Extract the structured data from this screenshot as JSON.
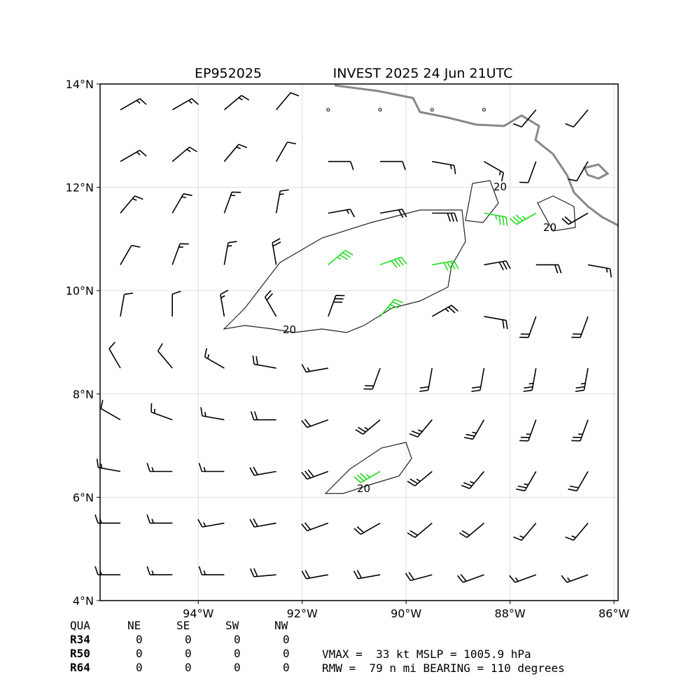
{
  "header": {
    "storm_id": "EP952025",
    "title": "INVEST 2025 24 Jun 21UTC"
  },
  "map": {
    "lonlim": [
      -95.89,
      -85.92
    ],
    "latlim": [
      4,
      14
    ],
    "lonticks": [
      {
        "value": -94,
        "label": "94°W"
      },
      {
        "value": -92,
        "label": "92°W"
      },
      {
        "value": -90,
        "label": "90°W"
      },
      {
        "value": -88,
        "label": "88°W"
      },
      {
        "value": -86,
        "label": "86°W"
      }
    ],
    "latticks": [
      {
        "value": 4,
        "label": "4°N"
      },
      {
        "value": 6,
        "label": "6°N"
      },
      {
        "value": 8,
        "label": "8°N"
      },
      {
        "value": 10,
        "label": "10°N"
      },
      {
        "value": 12,
        "label": "12°N"
      },
      {
        "value": 14,
        "label": "14°N"
      }
    ],
    "contour_labels": [
      "20",
      "20",
      "20",
      "20"
    ],
    "winds": {
      "lons": [
        -95.5,
        -94.5,
        -93.5,
        -92.5,
        -91.5,
        -90.5,
        -89.5,
        -88.5,
        -87.5,
        -86.5
      ],
      "lats": [
        13.5,
        12.5,
        11.5,
        10.5,
        9.5,
        8.5,
        7.5,
        6.5,
        5.5,
        4.5
      ],
      "strong_color": "#22dd22",
      "color": "#000000",
      "direction": [
        [
          60,
          60,
          50,
          40,
          0,
          0,
          0,
          0,
          220,
          220
        ],
        [
          60,
          50,
          40,
          30,
          90,
          90,
          100,
          120,
          200,
          210
        ],
        [
          40,
          30,
          20,
          10,
          80,
          80,
          90,
          100,
          240,
          240
        ],
        [
          30,
          20,
          10,
          350,
          50,
          70,
          80,
          80,
          90,
          100
        ],
        [
          10,
          0,
          350,
          330,
          20,
          40,
          60,
          100,
          200,
          200
        ],
        [
          330,
          320,
          300,
          280,
          260,
          200,
          190,
          190,
          190,
          190
        ],
        [
          300,
          290,
          280,
          270,
          250,
          230,
          220,
          210,
          200,
          200
        ],
        [
          280,
          270,
          270,
          260,
          250,
          240,
          230,
          220,
          210,
          210
        ],
        [
          270,
          270,
          260,
          260,
          250,
          240,
          230,
          230,
          220,
          220
        ],
        [
          270,
          270,
          270,
          265,
          260,
          260,
          255,
          250,
          250,
          250
        ]
      ],
      "speed": [
        [
          15,
          15,
          15,
          12,
          0,
          0,
          0,
          0,
          10,
          10
        ],
        [
          15,
          15,
          15,
          12,
          10,
          12,
          15,
          15,
          12,
          10
        ],
        [
          15,
          15,
          15,
          15,
          15,
          20,
          30,
          35,
          35,
          20
        ],
        [
          12,
          15,
          15,
          20,
          35,
          40,
          40,
          30,
          20,
          15
        ],
        [
          10,
          12,
          15,
          20,
          30,
          35,
          25,
          20,
          20,
          20
        ],
        [
          10,
          12,
          15,
          20,
          15,
          20,
          20,
          20,
          25,
          25
        ],
        [
          12,
          15,
          18,
          20,
          20,
          25,
          25,
          25,
          25,
          25
        ],
        [
          15,
          15,
          18,
          20,
          30,
          35,
          25,
          25,
          25,
          20
        ],
        [
          15,
          18,
          18,
          20,
          20,
          20,
          20,
          20,
          18,
          15
        ],
        [
          15,
          15,
          18,
          20,
          20,
          20,
          20,
          20,
          18,
          15
        ]
      ]
    }
  },
  "table": {
    "header": [
      "QUA",
      "NE",
      "SE",
      "SW",
      "NW"
    ],
    "rows": [
      [
        "R34",
        "0",
        "0",
        "0",
        "0"
      ],
      [
        "R50",
        "0",
        "0",
        "0",
        "0"
      ],
      [
        "R64",
        "0",
        "0",
        "0",
        "0"
      ]
    ]
  },
  "stats": [
    "VMAX =  33 kt MSLP = 1005.9 hPa",
    "RMW =  79 n mi BEARING = 110 degrees"
  ]
}
